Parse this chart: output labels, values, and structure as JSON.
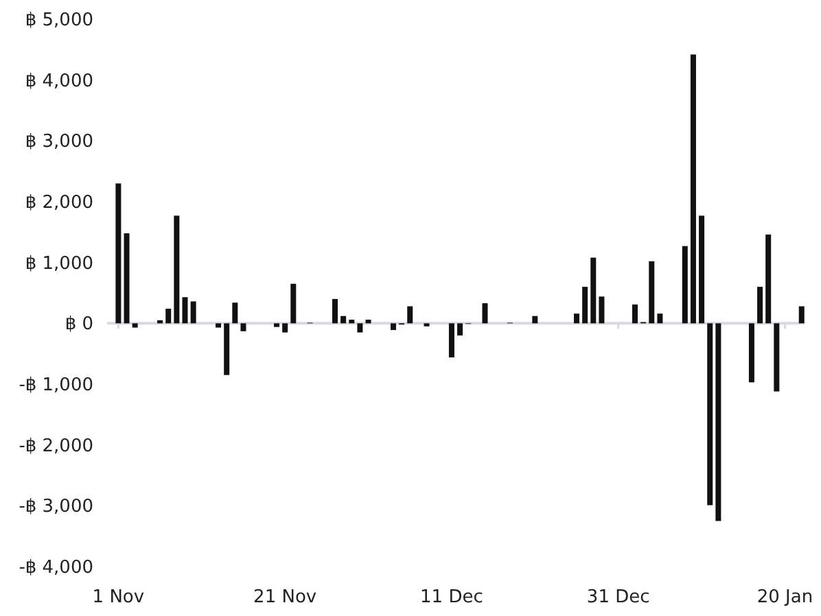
{
  "chart_data": {
    "type": "bar",
    "color": "#111111",
    "categories": [
      null,
      "1 Nov",
      null,
      null,
      null,
      null,
      null,
      null,
      null,
      null,
      null,
      null,
      null,
      null,
      null,
      null,
      null,
      null,
      null,
      null,
      null,
      "21 Nov",
      null,
      null,
      null,
      null,
      null,
      null,
      null,
      null,
      null,
      null,
      null,
      null,
      null,
      null,
      null,
      null,
      null,
      null,
      null,
      "11 Dec",
      null,
      null,
      null,
      null,
      null,
      null,
      null,
      null,
      null,
      null,
      null,
      null,
      null,
      null,
      null,
      null,
      null,
      null,
      null,
      "31 Dec",
      null,
      null,
      null,
      null,
      null,
      null,
      null,
      null,
      null,
      null,
      null,
      null,
      null,
      null,
      null,
      null,
      null,
      null,
      null,
      "20 Jan",
      null,
      null
    ],
    "values": [
      null,
      2300,
      1480,
      -70,
      null,
      null,
      50,
      240,
      1770,
      430,
      360,
      null,
      null,
      -70,
      -850,
      340,
      -130,
      null,
      null,
      null,
      -60,
      -150,
      650,
      null,
      10,
      null,
      null,
      400,
      120,
      60,
      -150,
      60,
      null,
      null,
      -110,
      -20,
      280,
      null,
      -50,
      null,
      null,
      -560,
      -200,
      -10,
      null,
      330,
      null,
      null,
      10,
      null,
      null,
      120,
      null,
      null,
      null,
      null,
      160,
      600,
      1080,
      440,
      null,
      null,
      null,
      310,
      20,
      1020,
      160,
      null,
      null,
      1270,
      4420,
      1770,
      -2990,
      -3250,
      null,
      null,
      null,
      -970,
      600,
      1460,
      -1120,
      null,
      null,
      280
    ],
    "ylim": [
      -4000,
      5000
    ],
    "yticks": [
      {
        "value": -4000,
        "label": "-฿ 4,000"
      },
      {
        "value": -3000,
        "label": "-฿ 3,000"
      },
      {
        "value": -2000,
        "label": "-฿ 2,000"
      },
      {
        "value": -1000,
        "label": "-฿ 1,000"
      },
      {
        "value": 0,
        "label": "฿ 0"
      },
      {
        "value": 1000,
        "label": "฿ 1,000"
      },
      {
        "value": 2000,
        "label": "฿ 2,000"
      },
      {
        "value": 3000,
        "label": "฿ 3,000"
      },
      {
        "value": 4000,
        "label": "฿ 4,000"
      },
      {
        "value": 5000,
        "label": "฿ 5,000"
      }
    ]
  }
}
